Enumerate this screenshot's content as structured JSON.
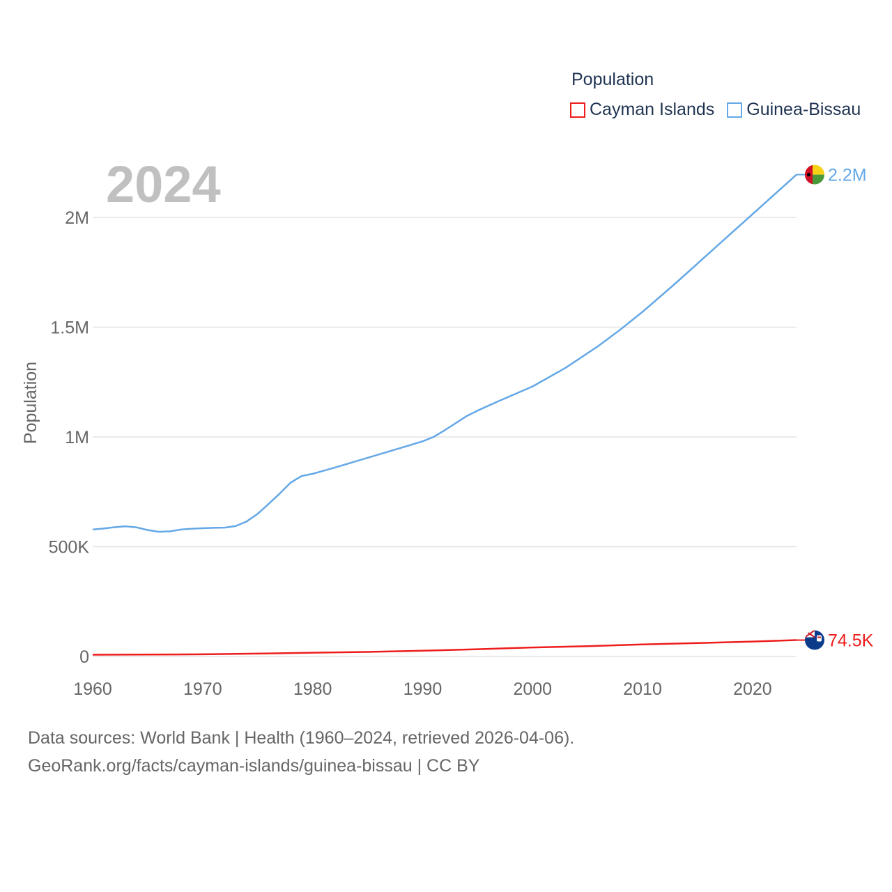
{
  "legend": {
    "title": "Population",
    "items": [
      {
        "label": "Cayman Islands",
        "color": "#ee1c1c"
      },
      {
        "label": "Guinea-Bissau",
        "color": "#64a8e6"
      }
    ]
  },
  "year_label": "2024",
  "footer": {
    "line1": "Data sources: World Bank | Health (1960–2024, retrieved 2026-04-06).",
    "line2": "GeoRank.org/facts/cayman-islands/guinea-bissau | CC BY"
  },
  "chart_data": {
    "type": "line",
    "title": "",
    "xlabel": "",
    "ylabel": "Population",
    "xlim": [
      1960,
      2024
    ],
    "ylim": [
      0,
      2200000
    ],
    "x_ticks": [
      1960,
      1970,
      1980,
      1990,
      2000,
      2010,
      2020
    ],
    "y_ticks": [
      {
        "value": 0,
        "label": "0"
      },
      {
        "value": 500000,
        "label": "500K"
      },
      {
        "value": 1000000,
        "label": "1M"
      },
      {
        "value": 1500000,
        "label": "1.5M"
      },
      {
        "value": 2000000,
        "label": "2M"
      }
    ],
    "grid": true,
    "series": [
      {
        "name": "Guinea-Bissau",
        "color": "#64a8e6",
        "end_label": "2.2M",
        "flag": "guinea-bissau-flag",
        "points": [
          [
            1960,
            578000
          ],
          [
            1961,
            583000
          ],
          [
            1962,
            589000
          ],
          [
            1963,
            593000
          ],
          [
            1964,
            588000
          ],
          [
            1965,
            576000
          ],
          [
            1966,
            568000
          ],
          [
            1967,
            570000
          ],
          [
            1968,
            578000
          ],
          [
            1969,
            582000
          ],
          [
            1970,
            584000
          ],
          [
            1971,
            586000
          ],
          [
            1972,
            587000
          ],
          [
            1973,
            594000
          ],
          [
            1974,
            615000
          ],
          [
            1975,
            650000
          ],
          [
            1976,
            695000
          ],
          [
            1977,
            742000
          ],
          [
            1978,
            792000
          ],
          [
            1979,
            822000
          ],
          [
            1980,
            832000
          ],
          [
            1982,
            860000
          ],
          [
            1985,
            905000
          ],
          [
            1988,
            950000
          ],
          [
            1990,
            980000
          ],
          [
            1991,
            1000000
          ],
          [
            1992,
            1030000
          ],
          [
            1994,
            1095000
          ],
          [
            1995,
            1120000
          ],
          [
            1997,
            1165000
          ],
          [
            2000,
            1230000
          ],
          [
            2003,
            1315000
          ],
          [
            2006,
            1415000
          ],
          [
            2008,
            1490000
          ],
          [
            2010,
            1570000
          ],
          [
            2013,
            1700000
          ],
          [
            2015,
            1790000
          ],
          [
            2018,
            1925000
          ],
          [
            2020,
            2015000
          ],
          [
            2022,
            2105000
          ],
          [
            2023,
            2150000
          ],
          [
            2024,
            2195000
          ]
        ]
      },
      {
        "name": "Cayman Islands",
        "color": "#ee1c1c",
        "end_label": "74.5K",
        "flag": "cayman-islands-flag",
        "points": [
          [
            1960,
            7900
          ],
          [
            1965,
            8500
          ],
          [
            1970,
            10000
          ],
          [
            1975,
            13000
          ],
          [
            1980,
            17000
          ],
          [
            1985,
            20500
          ],
          [
            1990,
            26000
          ],
          [
            1995,
            33000
          ],
          [
            2000,
            41000
          ],
          [
            2005,
            47000
          ],
          [
            2010,
            55000
          ],
          [
            2015,
            61000
          ],
          [
            2020,
            68000
          ],
          [
            2024,
            74500
          ]
        ]
      }
    ]
  }
}
